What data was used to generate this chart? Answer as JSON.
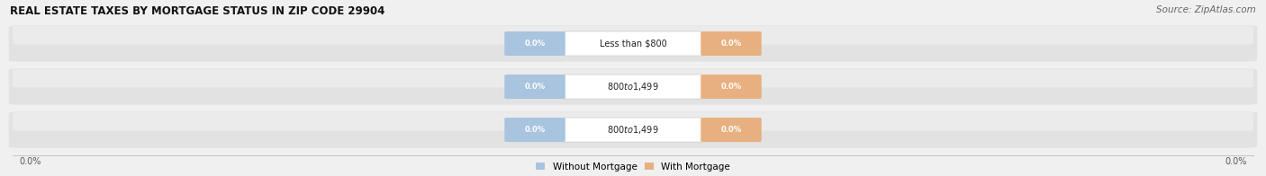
{
  "title": "REAL ESTATE TAXES BY MORTGAGE STATUS IN ZIP CODE 29904",
  "source": "Source: ZipAtlas.com",
  "categories": [
    "Less than $800",
    "$800 to $1,499",
    "$800 to $1,499"
  ],
  "without_mortgage": [
    0.0,
    0.0,
    0.0
  ],
  "with_mortgage": [
    0.0,
    0.0,
    0.0
  ],
  "bar_color_without": "#a8c4de",
  "bar_color_with": "#e8b080",
  "bg_color": "#f0f0f0",
  "bar_bg_color_light": "#e8e8e8",
  "bar_bg_color_dark": "#d8d8d8",
  "legend_label_without": "Without Mortgage",
  "legend_label_with": "With Mortgage",
  "x_left_label": "0.0%",
  "x_right_label": "0.0%",
  "figwidth": 14.06,
  "figheight": 1.96,
  "dpi": 100
}
